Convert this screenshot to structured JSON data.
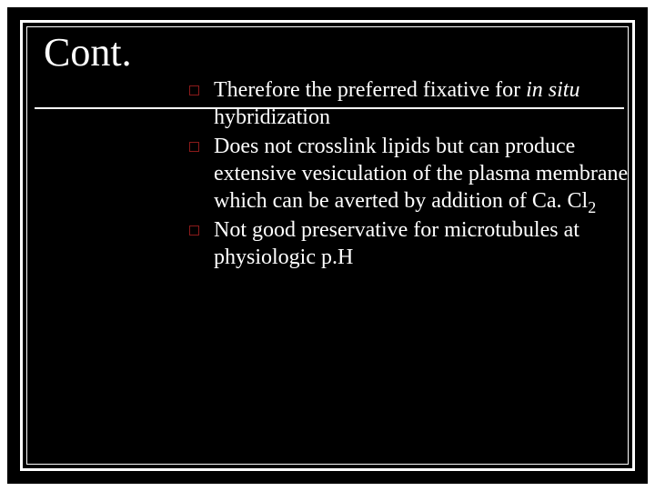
{
  "slide": {
    "title": "Cont.",
    "background_color": "#000000",
    "page_background": "#ffffff",
    "border_color": "#ffffff",
    "text_color": "#ffffff",
    "bullet_border_color": "#8b1a1a",
    "title_fontsize": 44,
    "body_fontsize": 24,
    "bullets": [
      {
        "html": "Therefore the preferred fixative for <em>in situ</em> hybridization"
      },
      {
        "html": "Does not crosslink lipids but can produce extensive vesiculation of the plasma membrane which can be averted by addition of Ca. Cl<span class=\"sub\">2</span>"
      },
      {
        "html": "Not good preservative for microtubules at physiologic p.H"
      }
    ]
  }
}
